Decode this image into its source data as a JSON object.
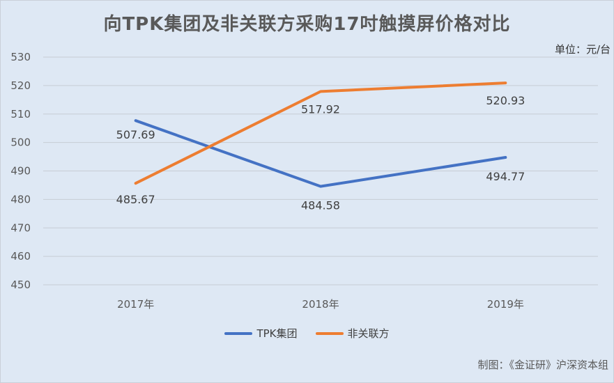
{
  "header": {
    "title": "向TPK集团及非关联方采购17吋触摸屏价格对比",
    "unit": "单位：元/台"
  },
  "footer": {
    "source": "制图：《金证研》沪深资本组"
  },
  "colors": {
    "series_0": "#4472c4",
    "series_1": "#ed7d31",
    "grid": "#c6ccd4",
    "axis_text": "#595959"
  },
  "chart_data": {
    "type": "line",
    "categories": [
      "2017年",
      "2018年",
      "2019年"
    ],
    "series": [
      {
        "name": "TPK集团",
        "values": [
          507.69,
          484.58,
          494.77
        ],
        "labels": [
          "507.69",
          "484.58",
          "494.77"
        ]
      },
      {
        "name": "非关联方",
        "values": [
          485.67,
          517.92,
          520.93
        ],
        "labels": [
          "485.67",
          "517.92",
          "520.93"
        ]
      }
    ],
    "ylim": [
      450,
      530
    ],
    "yticks": [
      "450",
      "460",
      "470",
      "480",
      "490",
      "500",
      "510",
      "520",
      "530"
    ],
    "grid": true,
    "legend": "bottom"
  }
}
